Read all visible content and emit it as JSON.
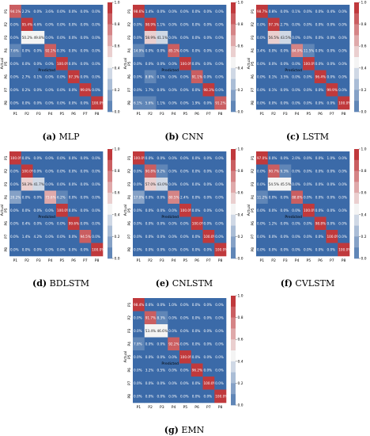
{
  "chart_data": [
    {
      "type": "heatmap",
      "caption_letter": "(a)",
      "caption_name": "MLP",
      "xlabel": "Predicted",
      "ylabel": "Actual",
      "categories": [
        "P1",
        "P2",
        "P3",
        "P4",
        "P5",
        "P6",
        "P7",
        "P8"
      ],
      "colorbar_ticks": [
        "0.0",
        "0.2",
        "0.4",
        "0.6",
        "0.8",
        "1.0"
      ],
      "values": [
        [
          94.1,
          2.2,
          0.0,
          3.6,
          0.0,
          0.0,
          0.0,
          0.0
        ],
        [
          0.0,
          95.4,
          4.6,
          0.0,
          0.0,
          0.0,
          0.0,
          0.0
        ],
        [
          0.0,
          50.2,
          49.8,
          0.0,
          0.0,
          0.0,
          0.0,
          0.0
        ],
        [
          7.6,
          0.0,
          0.0,
          92.1,
          0.3,
          0.0,
          0.0,
          0.0
        ],
        [
          0.0,
          0.0,
          0.0,
          0.0,
          100.0,
          0.0,
          0.0,
          0.0
        ],
        [
          0.0,
          2.7,
          0.1,
          0.0,
          0.0,
          97.3,
          0.0,
          0.0
        ],
        [
          0.0,
          0.2,
          0.0,
          0.0,
          0.0,
          0.0,
          99.8,
          0.0
        ],
        [
          0.0,
          0.0,
          0.0,
          0.0,
          0.0,
          0.0,
          0.0,
          100.0
        ]
      ]
    },
    {
      "type": "heatmap",
      "caption_letter": "(b)",
      "caption_name": "CNN",
      "xlabel": "Predicted",
      "ylabel": "Actual",
      "categories": [
        "P1",
        "P2",
        "P3",
        "P4",
        "P5",
        "P6",
        "P7",
        "P8"
      ],
      "colorbar_ticks": [
        "0.0",
        "0.2",
        "0.4",
        "0.6",
        "0.8",
        "1.0"
      ],
      "values": [
        [
          98.6,
          1.4,
          0.0,
          0.0,
          0.0,
          0.0,
          0.0,
          0.0
        ],
        [
          0.0,
          98.9,
          1.1,
          0.0,
          0.0,
          0.0,
          0.0,
          0.0
        ],
        [
          0.0,
          58.9,
          41.1,
          0.0,
          0.0,
          0.0,
          0.0,
          0.0
        ],
        [
          14.9,
          0.0,
          0.0,
          85.1,
          0.0,
          0.0,
          0.0,
          0.0
        ],
        [
          0.0,
          0.0,
          0.0,
          0.0,
          100.0,
          0.0,
          0.0,
          0.0
        ],
        [
          0.0,
          8.8,
          0.1,
          0.0,
          0.0,
          91.1,
          0.0,
          0.0
        ],
        [
          0.0,
          1.7,
          0.0,
          0.0,
          0.0,
          0.0,
          98.3,
          0.0
        ],
        [
          6.1,
          5.6,
          1.1,
          0.0,
          0.0,
          1.9,
          0.0,
          91.2
        ]
      ]
    },
    {
      "type": "heatmap",
      "caption_letter": "(c)",
      "caption_name": "LSTM",
      "xlabel": "Predicted",
      "ylabel": "Actual",
      "categories": [
        "P1",
        "P2",
        "P3",
        "P4",
        "P5",
        "P6",
        "P7",
        "P8"
      ],
      "colorbar_ticks": [
        "0.0",
        "0.2",
        "0.4",
        "0.6",
        "0.8",
        "1.0"
      ],
      "values": [
        [
          98.7,
          0.8,
          0.0,
          0.1,
          0.0,
          0.0,
          0.4,
          0.0
        ],
        [
          0.0,
          97.3,
          2.7,
          0.0,
          0.0,
          0.0,
          0.0,
          0.0
        ],
        [
          0.0,
          56.5,
          43.5,
          0.0,
          0.0,
          0.0,
          0.0,
          0.0
        ],
        [
          3.4,
          0.0,
          0.0,
          84.9,
          11.5,
          0.0,
          0.0,
          0.0
        ],
        [
          0.0,
          0.0,
          0.0,
          0.0,
          100.0,
          0.0,
          0.0,
          0.0
        ],
        [
          0.0,
          0.1,
          3.5,
          0.0,
          0.0,
          96.4,
          0.0,
          0.0
        ],
        [
          0.0,
          0.1,
          0.0,
          0.0,
          0.0,
          0.0,
          99.9,
          0.0
        ],
        [
          0.0,
          0.0,
          0.0,
          0.0,
          0.0,
          0.0,
          0.0,
          100.0
        ]
      ]
    },
    {
      "type": "heatmap",
      "caption_letter": "(d)",
      "caption_name": "BDLSTM",
      "xlabel": "Predicted",
      "ylabel": "Actual",
      "categories": [
        "P1",
        "P2",
        "P3",
        "P4",
        "P5",
        "P6",
        "P7",
        "P8"
      ],
      "colorbar_ticks": [
        "0.0",
        "0.2",
        "0.4",
        "0.6",
        "0.8",
        "1.0"
      ],
      "values": [
        [
          100.0,
          0.0,
          0.0,
          0.0,
          0.0,
          0.0,
          0.0,
          0.0
        ],
        [
          0.0,
          100.0,
          0.0,
          0.0,
          0.0,
          0.0,
          0.0,
          0.0
        ],
        [
          0.0,
          58.3,
          41.7,
          0.0,
          0.0,
          0.0,
          0.0,
          0.0
        ],
        [
          20.2,
          0.0,
          0.0,
          73.6,
          6.2,
          0.0,
          0.0,
          0.0
        ],
        [
          0.0,
          0.0,
          0.0,
          0.0,
          100.0,
          0.0,
          0.0,
          0.0
        ],
        [
          0.0,
          0.4,
          0.0,
          0.0,
          0.0,
          99.6,
          0.0,
          0.0
        ],
        [
          0.0,
          1.4,
          4.2,
          0.0,
          0.0,
          0.0,
          94.5,
          0.0
        ],
        [
          0.0,
          0.0,
          0.0,
          0.0,
          0.0,
          0.0,
          0.0,
          100.0
        ]
      ]
    },
    {
      "type": "heatmap",
      "caption_letter": "(e)",
      "caption_name": "CNLSTM",
      "xlabel": "Predicted",
      "ylabel": "Actual",
      "categories": [
        "P1",
        "P2",
        "P3",
        "P4",
        "P5",
        "P6",
        "P7",
        "P8"
      ],
      "colorbar_ticks": [
        "0.0",
        "0.2",
        "0.4",
        "0.6",
        "0.8",
        "1.0"
      ],
      "values": [
        [
          100.0,
          0.0,
          0.0,
          0.0,
          0.0,
          0.0,
          0.0,
          0.0
        ],
        [
          0.0,
          90.8,
          9.2,
          0.0,
          0.0,
          0.0,
          0.0,
          0.0
        ],
        [
          0.0,
          57.0,
          43.0,
          0.0,
          0.0,
          0.0,
          0.0,
          0.0
        ],
        [
          17.0,
          0.0,
          0.0,
          80.5,
          2.4,
          0.0,
          0.0,
          0.0
        ],
        [
          0.0,
          0.0,
          0.0,
          0.0,
          100.0,
          0.0,
          0.0,
          0.0
        ],
        [
          0.0,
          0.0,
          0.0,
          0.0,
          0.0,
          100.0,
          0.0,
          0.0
        ],
        [
          0.0,
          0.0,
          0.0,
          0.0,
          0.0,
          0.0,
          100.0,
          0.0
        ],
        [
          0.0,
          0.0,
          0.0,
          0.0,
          0.0,
          0.0,
          0.0,
          100.0
        ]
      ]
    },
    {
      "type": "heatmap",
      "caption_letter": "(f)",
      "caption_name": "CVLSTM",
      "xlabel": "Predicted",
      "ylabel": "Actual",
      "categories": [
        "P1",
        "P2",
        "P3",
        "P4",
        "P5",
        "P6",
        "P7",
        "P8"
      ],
      "colorbar_ticks": [
        "0.0",
        "0.2",
        "0.4",
        "0.6",
        "0.8",
        "1.0"
      ],
      "values": [
        [
          97.0,
          0.0,
          0.0,
          2.0,
          0.0,
          0.0,
          1.0,
          0.0
        ],
        [
          0.0,
          90.7,
          9.3,
          0.0,
          0.0,
          0.0,
          0.0,
          0.0
        ],
        [
          0.0,
          54.5,
          45.5,
          0.0,
          0.0,
          0.0,
          0.0,
          0.0
        ],
        [
          11.2,
          0.0,
          0.0,
          88.8,
          0.0,
          0.0,
          0.0,
          0.0
        ],
        [
          0.0,
          0.0,
          0.0,
          0.0,
          100.0,
          0.0,
          0.0,
          0.0
        ],
        [
          0.0,
          1.2,
          0.0,
          0.0,
          0.0,
          98.8,
          0.0,
          0.0
        ],
        [
          0.0,
          0.0,
          0.0,
          0.0,
          0.0,
          0.0,
          100.0,
          0.0
        ],
        [
          0.0,
          0.0,
          0.0,
          0.0,
          0.0,
          0.0,
          0.0,
          100.0
        ]
      ]
    },
    {
      "type": "heatmap",
      "caption_letter": "(g)",
      "caption_name": "EMN",
      "xlabel": "Predicted",
      "ylabel": "Actual",
      "categories": [
        "P1",
        "P2",
        "P3",
        "P4",
        "P5",
        "P6",
        "P7",
        "P8"
      ],
      "colorbar_ticks": [
        "0.0",
        "0.2",
        "0.4",
        "0.6",
        "0.8",
        "1.0"
      ],
      "values": [
        [
          98.4,
          0.6,
          0.0,
          1.0,
          0.0,
          0.0,
          0.0,
          0.0
        ],
        [
          0.0,
          91.7,
          8.3,
          0.0,
          0.0,
          0.0,
          0.0,
          0.0
        ],
        [
          0.0,
          53.4,
          46.6,
          0.0,
          0.0,
          0.0,
          0.0,
          0.0
        ],
        [
          7.8,
          0.0,
          0.0,
          92.2,
          0.0,
          0.0,
          0.0,
          0.0
        ],
        [
          0.0,
          0.0,
          0.0,
          0.0,
          100.0,
          0.0,
          0.0,
          0.0
        ],
        [
          0.0,
          3.2,
          0.5,
          0.0,
          0.0,
          96.2,
          0.0,
          0.0
        ],
        [
          0.0,
          0.0,
          0.0,
          0.0,
          0.0,
          0.0,
          100.0,
          0.0
        ],
        [
          0.0,
          0.0,
          0.0,
          0.0,
          0.0,
          0.0,
          0.0,
          100.0
        ]
      ]
    }
  ],
  "colors": {
    "low": "#3b6aa8",
    "mid": "#f4f4f4",
    "high": "#c0393c"
  }
}
